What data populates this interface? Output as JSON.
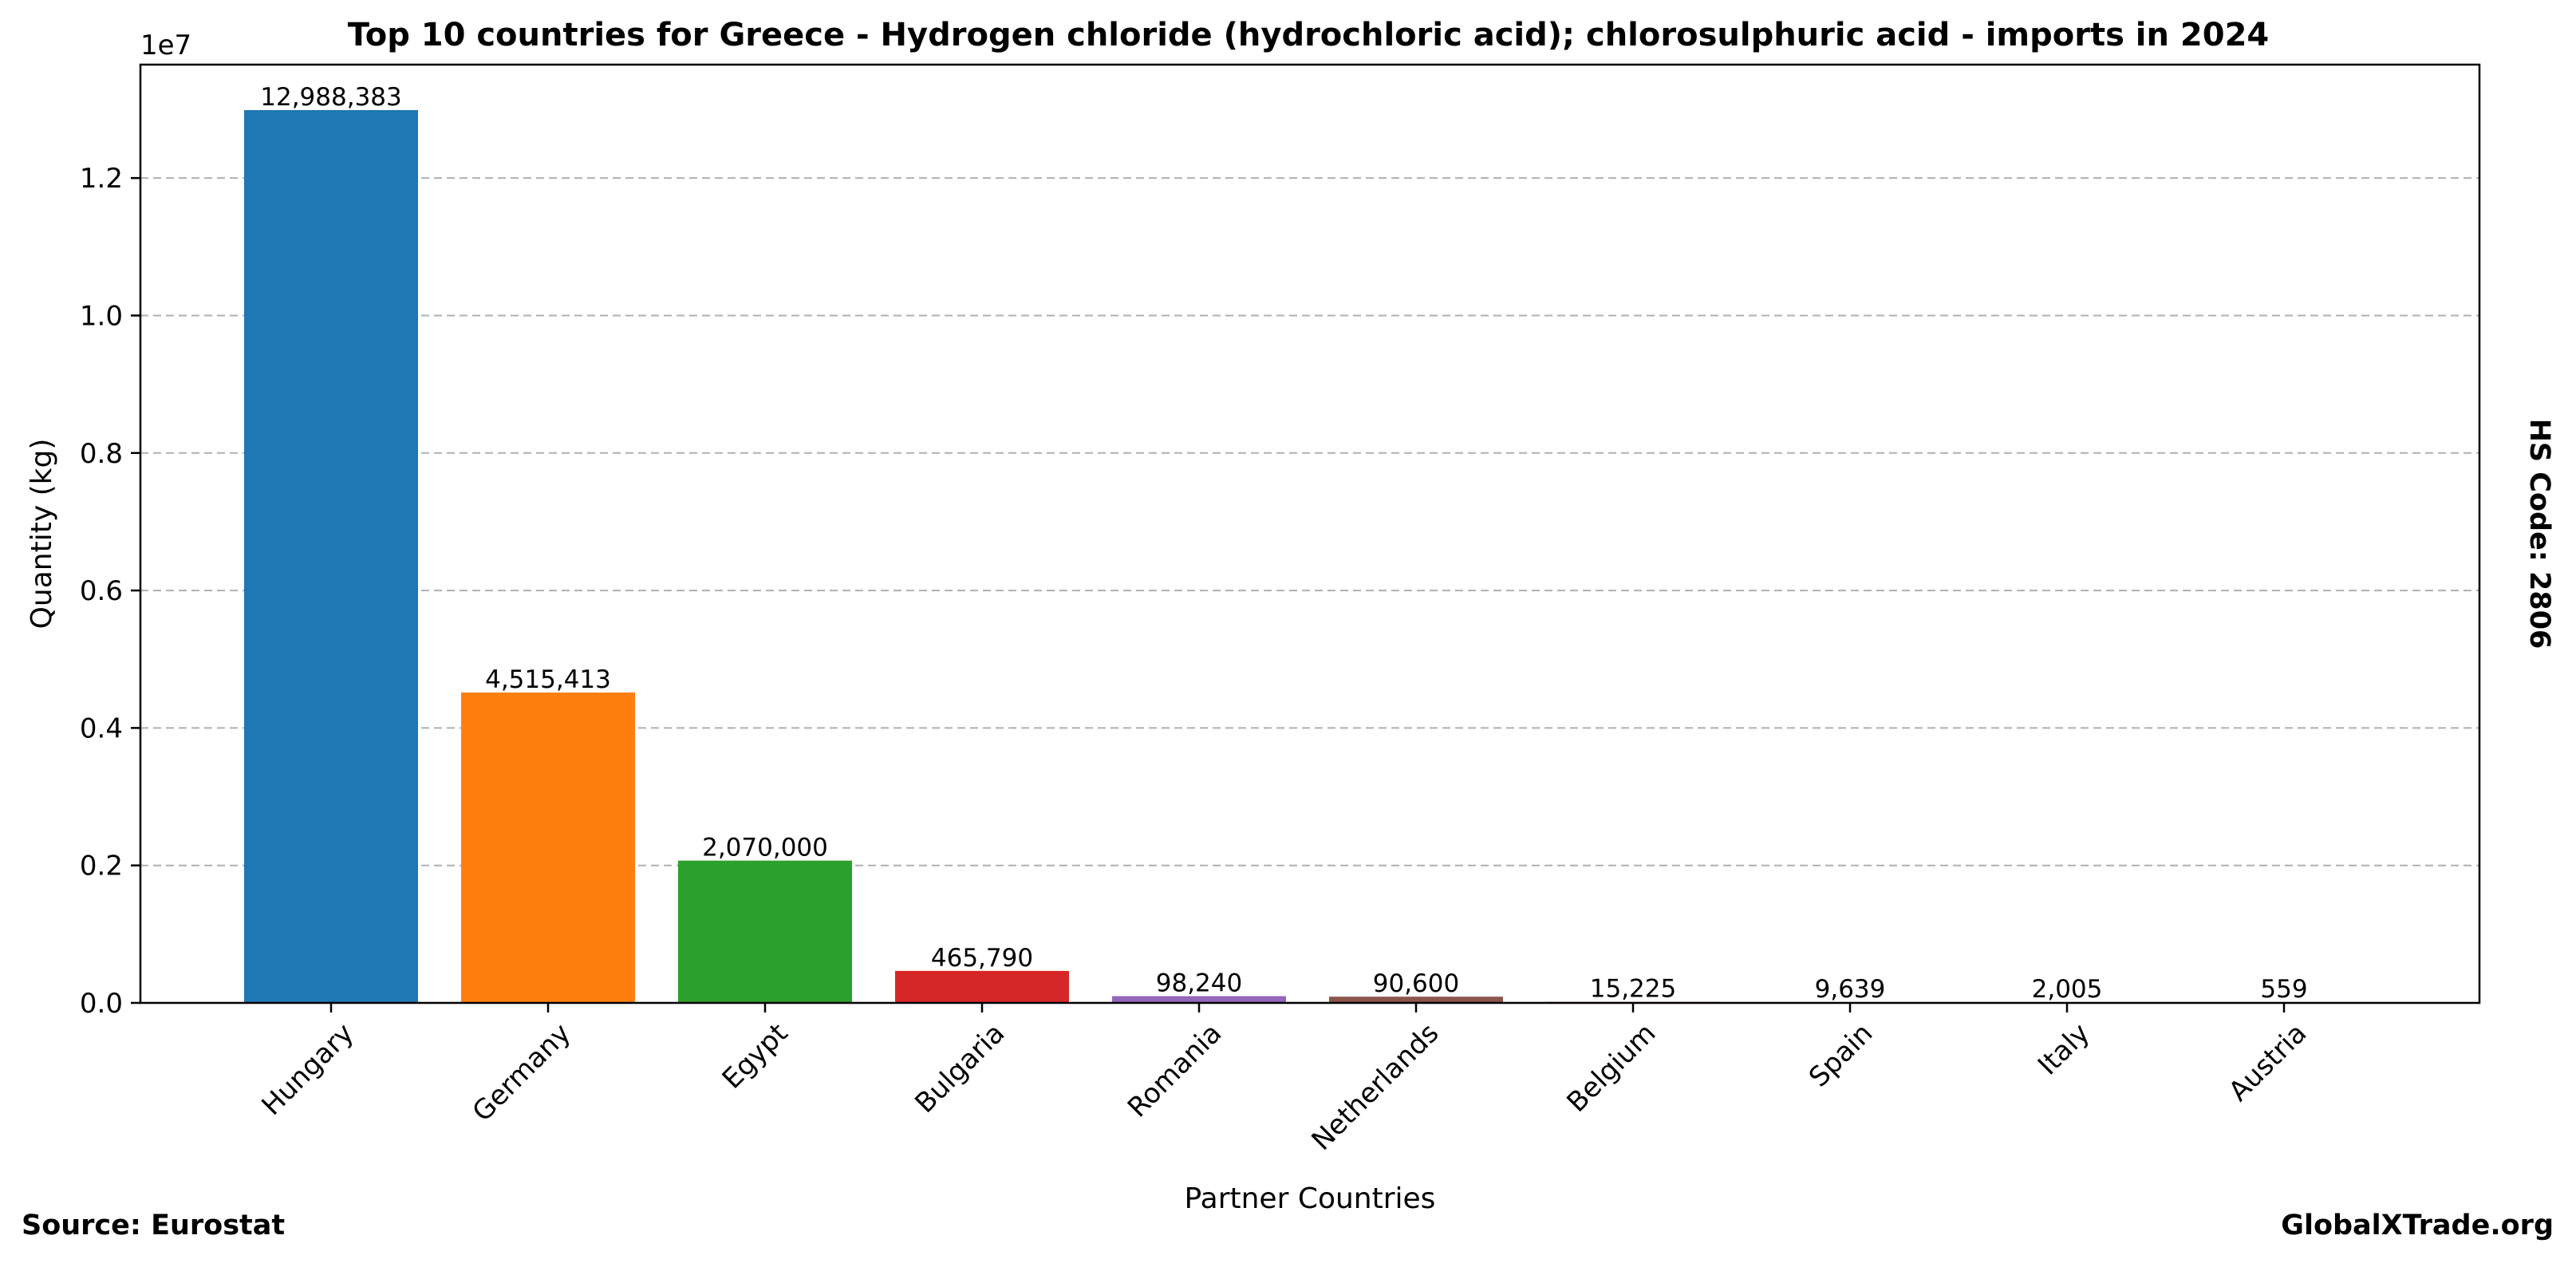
{
  "chart_data": {
    "type": "bar",
    "title": "Top 10 countries for Greece - Hydrogen chloride (hydrochloric acid); chlorosulphuric acid - imports in 2024",
    "xlabel": "Partner Countries",
    "ylabel": "Quantity (kg)",
    "y_scale_note": "1e7",
    "ylim": [
      0,
      13650000
    ],
    "y_ticks": [
      0,
      2000000,
      4000000,
      6000000,
      8000000,
      10000000,
      12000000
    ],
    "y_tick_labels": [
      "0.0",
      "0.2",
      "0.4",
      "0.6",
      "0.8",
      "1.0",
      "1.2"
    ],
    "grid": "horizontal dashed",
    "categories": [
      "Hungary",
      "Germany",
      "Egypt",
      "Bulgaria",
      "Romania",
      "Netherlands",
      "Belgium",
      "Spain",
      "Italy",
      "Austria"
    ],
    "values": [
      12988383,
      4515413,
      2070000,
      465790,
      98240,
      90600,
      15225,
      9639,
      2005,
      559
    ],
    "value_labels": [
      "12,988,383",
      "4,515,413",
      "2,070,000",
      "465,790",
      "98,240",
      "90,600",
      "15,225",
      "9,639",
      "2,005",
      "559"
    ],
    "colors": [
      "#1f77b4",
      "#ff7f0e",
      "#2ca02c",
      "#d62728",
      "#9467bd",
      "#8c564b",
      "#e377c2",
      "#7f7f7f",
      "#bcbd22",
      "#17becf"
    ]
  },
  "side_label": "HS Code: 2806",
  "footer": {
    "source": "Source: Eurostat",
    "brand": "GlobalXTrade.org"
  }
}
